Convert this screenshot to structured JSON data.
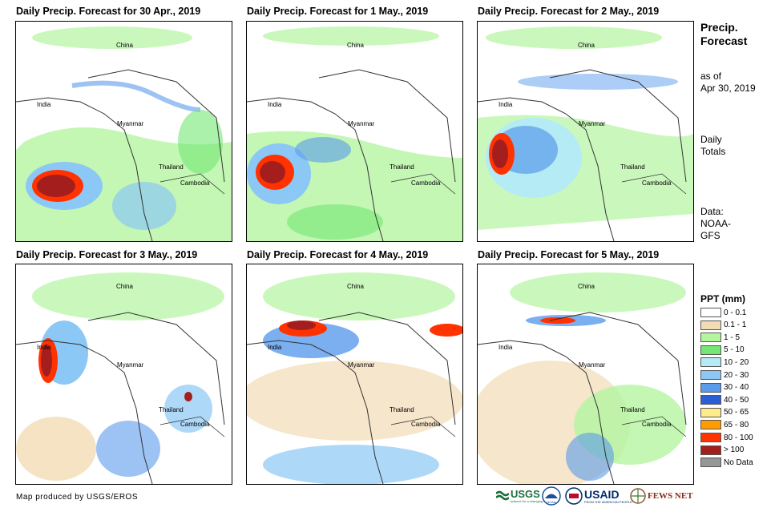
{
  "panels": [
    {
      "title": "Daily Precip. Forecast for 30 Apr., 2019"
    },
    {
      "title": "Daily Precip. Forecast for 1 May., 2019"
    },
    {
      "title": "Daily Precip. Forecast for 2 May., 2019"
    },
    {
      "title": "Daily Precip. Forecast for 3 May., 2019"
    },
    {
      "title": "Daily Precip. Forecast for 4 May., 2019"
    },
    {
      "title": "Daily Precip. Forecast for 5 May., 2019"
    }
  ],
  "places": {
    "china": "China",
    "india": "India",
    "myanmar": "Myanmar",
    "thailand": "Thailand",
    "cambodia": "Cambodia"
  },
  "sidebar": {
    "title_line1": "Precip.",
    "title_line2": "Forecast",
    "asof_line1": "as of",
    "asof_line2": "Apr 30, 2019",
    "daily_line1": "Daily",
    "daily_line2": "Totals",
    "data_line1": "Data:",
    "data_line2": "NOAA-",
    "data_line3": "GFS"
  },
  "legend": {
    "title": "PPT (mm)",
    "items": [
      {
        "label": "0 - 0.1",
        "color": "#ffffff"
      },
      {
        "label": "0.1 - 1",
        "color": "#f2dcb5"
      },
      {
        "label": "1 - 5",
        "color": "#b4f5a0"
      },
      {
        "label": "5 - 10",
        "color": "#73e673"
      },
      {
        "label": "10 - 20",
        "color": "#b4ebf5"
      },
      {
        "label": "20 - 30",
        "color": "#8cc8f5"
      },
      {
        "label": "30 - 40",
        "color": "#5a9beb"
      },
      {
        "label": "40 - 50",
        "color": "#2a5fd6"
      },
      {
        "label": "50 - 65",
        "color": "#ffeb8c"
      },
      {
        "label": "65 - 80",
        "color": "#ff9b00"
      },
      {
        "label": "80 - 100",
        "color": "#ff3200"
      },
      {
        "label": "> 100",
        "color": "#a51e1e"
      },
      {
        "label": "No Data",
        "color": "#969696"
      }
    ]
  },
  "credit": "Map produced by USGS/EROS",
  "logos": {
    "usgs": "USGS",
    "usgs_tagline": "science for a changing world",
    "noaa": "NOAA",
    "usaid": "USAID",
    "usaid_tagline": "FROM THE AMERICAN PEOPLE",
    "fewsnet": "FEWS NET"
  }
}
